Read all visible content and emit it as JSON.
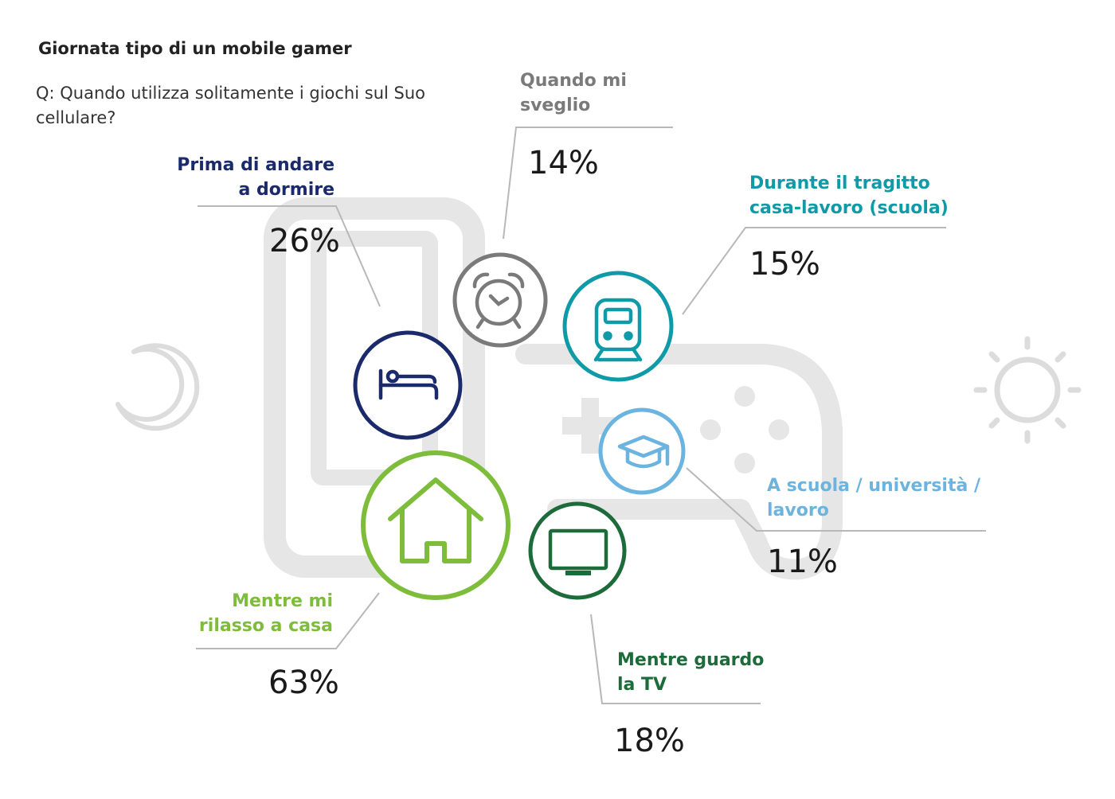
{
  "header": {
    "title": "Giornata tipo di un mobile gamer",
    "question_line1": "Q: Quando utilizza solitamente i giochi sul Suo",
    "question_line2": "cellulare?"
  },
  "colors": {
    "navy": "#1b2a6b",
    "gray": "#7a7a7a",
    "teal": "#0e9aa7",
    "lightblue": "#6cb4e0",
    "lime": "#7ebd3b",
    "darkgreen": "#1d6b3a",
    "watermark": "#e6e6e6",
    "leader": "#b8b8b8"
  },
  "chart_data": {
    "type": "infographic",
    "title": "Giornata tipo di un mobile gamer",
    "categories": [
      {
        "key": "bed",
        "line1": "Prima di andare",
        "line2": "a dormire",
        "value": 26,
        "label": "26%",
        "icon": "bed-icon",
        "color": "#1b2a6b"
      },
      {
        "key": "wake",
        "line1": "Quando mi",
        "line2": "sveglio",
        "value": 14,
        "label": "14%",
        "icon": "alarm-clock-icon",
        "color": "#7a7a7a"
      },
      {
        "key": "commute",
        "line1": "Durante il tragitto",
        "line2": "casa-lavoro (scuola)",
        "value": 15,
        "label": "15%",
        "icon": "train-icon",
        "color": "#0e9aa7"
      },
      {
        "key": "school",
        "line1": "A scuola / università /",
        "line2": "lavoro",
        "value": 11,
        "label": "11%",
        "icon": "graduation-cap-icon",
        "color": "#6cb4e0"
      },
      {
        "key": "home",
        "line1": "Mentre mi",
        "line2": "rilasso a casa",
        "value": 63,
        "label": "63%",
        "icon": "house-icon",
        "color": "#7ebd3b"
      },
      {
        "key": "tv",
        "line1": "Mentre guardo",
        "line2": "la TV",
        "value": 18,
        "label": "18%",
        "icon": "tv-icon",
        "color": "#1d6b3a"
      }
    ],
    "decorations": [
      "moon-icon",
      "sun-icon",
      "phone-outline-icon",
      "gamepad-outline-icon"
    ]
  }
}
